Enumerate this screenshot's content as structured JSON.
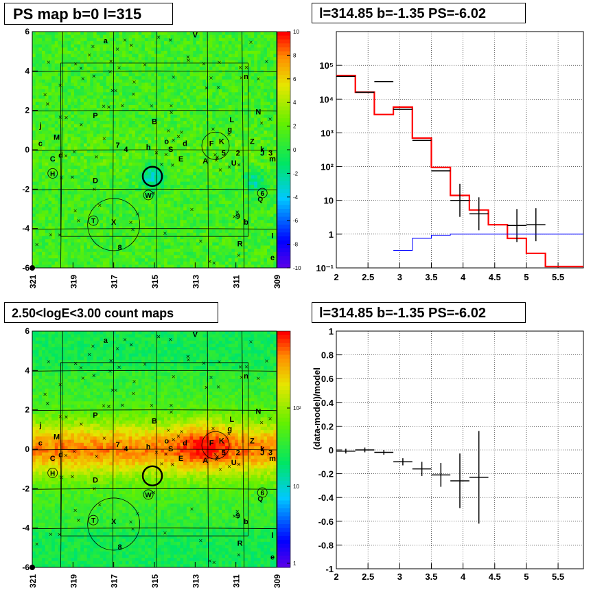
{
  "panels": {
    "top_left": {
      "title": "PS map b=0 l=315"
    },
    "top_right": {
      "title": "l=314.85 b=-1.35 PS=-6.02"
    },
    "bottom_left": {
      "title": "2.50<logE<3.00 count maps"
    },
    "bottom_right": {
      "title": "l=314.85 b=-1.35 PS=-6.02"
    }
  },
  "chart_data": [
    {
      "type": "heatmap",
      "title": "PS map b=0 l=315",
      "x_ticks": [
        "321",
        "319",
        "317",
        "315",
        "313",
        "311",
        "309"
      ],
      "y_ticks": [
        "-6",
        "-4",
        "-2",
        "0",
        "2",
        "4",
        "6"
      ],
      "xlim": [
        321,
        309
      ],
      "ylim": [
        -6,
        6
      ],
      "colorbar": {
        "ticks": [
          "-10",
          "-8",
          "-6",
          "-4",
          "-2",
          "0",
          "2",
          "4",
          "6",
          "8",
          "10"
        ],
        "range": [
          -10,
          10
        ]
      },
      "sources": [
        "a",
        "V",
        "n",
        "N",
        "L",
        "g",
        "K",
        "F",
        "Z",
        "k",
        "J",
        "3",
        "m",
        "2",
        "5",
        "A",
        "U",
        "E",
        "S",
        "d",
        "o",
        "h",
        "4",
        "7",
        "B",
        "P",
        "j",
        "M",
        "c",
        "C",
        "d",
        "H",
        "D",
        "W",
        "T",
        "X",
        "8",
        "9",
        "b",
        "R",
        "6",
        "Q",
        "l",
        "e"
      ]
    },
    {
      "type": "line",
      "title": "l=314.85 b=-1.35 PS=-6.02",
      "x_ticks": [
        "2",
        "2.5",
        "3",
        "3.5",
        "4",
        "4.5",
        "5",
        "5.5"
      ],
      "y_ticks": [
        "10⁻¹",
        "1",
        "10",
        "10²",
        "10³",
        "10⁴",
        "10⁵"
      ],
      "xlim": [
        2,
        5.9
      ],
      "ylim": [
        0.1,
        1000000
      ],
      "y_scale": "log",
      "grid": true,
      "series": [
        {
          "color": "#ff0000",
          "bins": [
            [
              2.0,
              2.3,
              50000
            ],
            [
              2.3,
              2.6,
              16000
            ],
            [
              2.6,
              2.9,
              3500
            ],
            [
              2.9,
              3.2,
              5800
            ],
            [
              3.2,
              3.5,
              700
            ],
            [
              3.5,
              3.8,
              95
            ],
            [
              3.8,
              4.1,
              14
            ],
            [
              4.1,
              4.4,
              5.2
            ],
            [
              4.4,
              4.7,
              1.9
            ],
            [
              4.7,
              5.0,
              0.75
            ],
            [
              5.0,
              5.3,
              0.27
            ],
            [
              5.3,
              5.9,
              0.11
            ]
          ]
        },
        {
          "color": "#000000",
          "points": [
            [
              2.15,
              47000
            ],
            [
              2.45,
              16000
            ],
            [
              2.75,
              33000
            ],
            [
              3.05,
              5000
            ],
            [
              3.35,
              600
            ],
            [
              3.65,
              75
            ],
            [
              3.95,
              10
            ],
            [
              4.25,
              4
            ],
            [
              4.85,
              1.8
            ],
            [
              5.15,
              1.9
            ]
          ]
        },
        {
          "color": "#0000ff",
          "bins": [
            [
              2.9,
              3.2,
              0.33
            ],
            [
              3.2,
              3.5,
              0.75
            ],
            [
              3.5,
              3.8,
              0.93
            ],
            [
              3.8,
              5.9,
              1.0
            ]
          ]
        }
      ]
    },
    {
      "type": "heatmap",
      "title": "2.50<logE<3.00 count maps",
      "x_ticks": [
        "321",
        "319",
        "317",
        "315",
        "313",
        "311",
        "309"
      ],
      "y_ticks": [
        "-6",
        "-4",
        "-2",
        "0",
        "2",
        "4",
        "6"
      ],
      "xlim": [
        321,
        309
      ],
      "ylim": [
        -6,
        6
      ],
      "colorbar": {
        "ticks": [
          "1",
          "10",
          "10²"
        ],
        "scale": "log"
      }
    },
    {
      "type": "scatter",
      "title": "l=314.85 b=-1.35 PS=-6.02",
      "ylabel": "(data-model)/model",
      "x_ticks": [
        "2",
        "2.5",
        "3",
        "3.5",
        "4",
        "4.5",
        "5",
        "5.5"
      ],
      "y_ticks": [
        "-1",
        "-0.8",
        "-0.6",
        "-0.4",
        "-0.2",
        "0",
        "0.2",
        "0.4",
        "0.6",
        "0.8",
        "1"
      ],
      "xlim": [
        2,
        5.9
      ],
      "ylim": [
        -1,
        1
      ],
      "grid": true,
      "points": [
        {
          "x": 2.15,
          "y": -0.01,
          "ex": 0.15,
          "ey": 0.02
        },
        {
          "x": 2.45,
          "y": 0.0,
          "ex": 0.15,
          "ey": 0.02
        },
        {
          "x": 2.75,
          "y": -0.02,
          "ex": 0.15,
          "ey": 0.02
        },
        {
          "x": 3.05,
          "y": -0.1,
          "ex": 0.15,
          "ey": 0.03
        },
        {
          "x": 3.35,
          "y": -0.16,
          "ex": 0.15,
          "ey": 0.06
        },
        {
          "x": 3.65,
          "y": -0.21,
          "ex": 0.15,
          "ey": 0.1
        },
        {
          "x": 3.95,
          "y": -0.26,
          "ex": 0.15,
          "ey": 0.23
        },
        {
          "x": 4.25,
          "y": -0.23,
          "ex": 0.15,
          "ey": 0.39
        }
      ]
    }
  ]
}
